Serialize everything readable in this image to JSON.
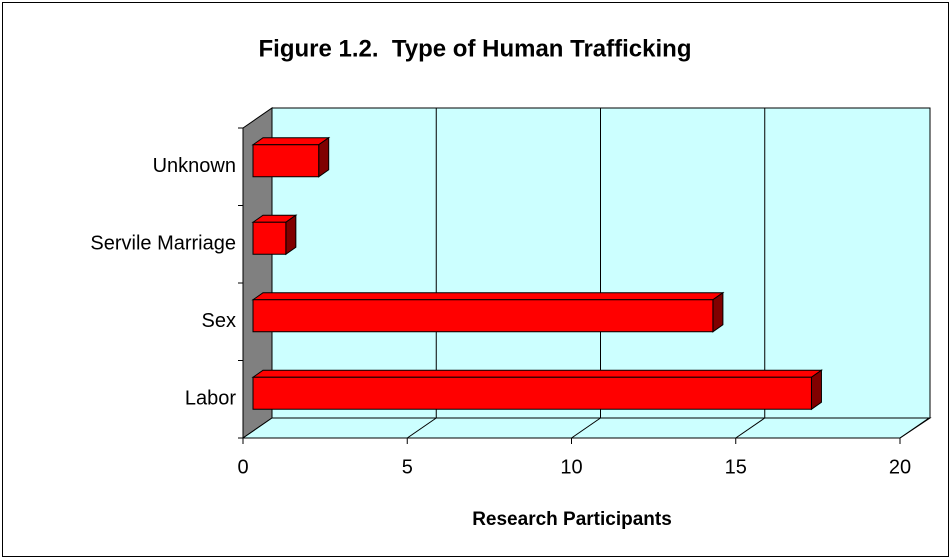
{
  "chart_data": {
    "type": "bar",
    "orientation": "horizontal",
    "title": "Figure 1.2.  Type of Human Trafficking",
    "x_label": "Research Participants",
    "categories": [
      "Labor",
      "Sex",
      "Servile Marriage",
      "Unknown"
    ],
    "values": [
      17,
      14,
      1,
      2
    ],
    "color": "#ff0000",
    "xlim": [
      0,
      20
    ],
    "xticks": [
      0,
      5,
      10,
      15,
      20
    ],
    "grid": true
  }
}
